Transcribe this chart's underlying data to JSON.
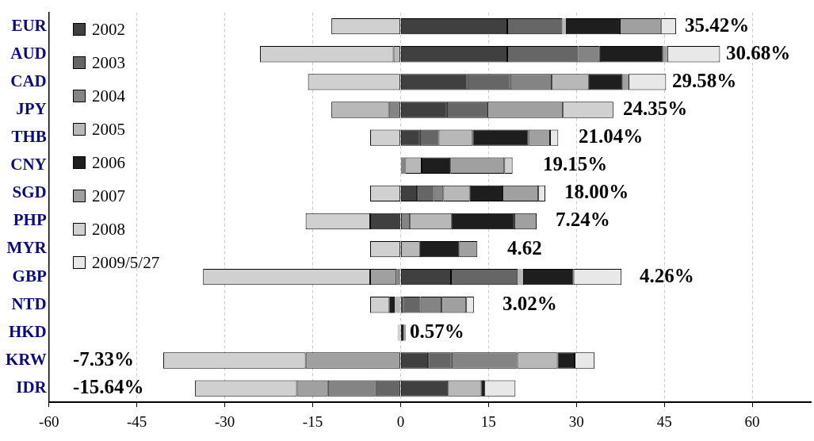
{
  "chart_data": {
    "type": "bar",
    "orientation": "horizontal",
    "stacked": true,
    "categories": [
      "EUR",
      "AUD",
      "CAD",
      "JPY",
      "THB",
      "CNY",
      "SGD",
      "PHP",
      "MYR",
      "GBP",
      "NTD",
      "HKD",
      "KRW",
      "IDR"
    ],
    "series": [
      {
        "name": "2002",
        "color": "#404040",
        "values": [
          18.2,
          18.2,
          11.4,
          7.9,
          3.3,
          null,
          2.8,
          -5.2,
          null,
          8.6,
          0.4,
          null,
          4.7,
          8.1
        ]
      },
      {
        "name": "2003",
        "color": "#666666",
        "values": [
          9.4,
          12.1,
          7.3,
          6.9,
          3.2,
          null,
          2.9,
          null,
          null,
          11.4,
          3.0,
          null,
          4.0,
          -4.3
        ]
      },
      {
        "name": "2004",
        "color": "#848484",
        "values": [
          null,
          3.7,
          7.1,
          -2.0,
          null,
          0.8,
          1.6,
          1.6,
          null,
          -0.7,
          3.6,
          null,
          11.2,
          -8.1
        ]
      },
      {
        "name": "2005",
        "color": "#b8b8b8",
        "values": [
          0.6,
          -1.2,
          6.3,
          -9.8,
          5.8,
          2.8,
          4.5,
          7.1,
          3.3,
          0.9,
          -1.0,
          null,
          6.9,
          5.7
        ]
      },
      {
        "name": "2006",
        "color": "#1e1e1e",
        "values": [
          9.2,
          10.8,
          5.8,
          null,
          9.5,
          4.9,
          5.6,
          10.7,
          6.7,
          8.6,
          -0.9,
          0.5,
          2.9,
          0.5
        ]
      },
      {
        "name": "2007",
        "color": "#a0a0a0",
        "values": [
          7.0,
          0.7,
          1.0,
          12.9,
          3.7,
          9.2,
          6.1,
          3.8,
          3.1,
          -4.5,
          4.2,
          0.4,
          -16.2,
          -5.3
        ]
      },
      {
        "name": "2008",
        "color": "#d0d0d0",
        "values": [
          -11.8,
          -22.8,
          -15.8,
          8.6,
          -5.2,
          1.4,
          -5.2,
          -11.0,
          -5.2,
          -28.5,
          -3.3,
          -0.5,
          -24.3,
          -17.4
        ]
      },
      {
        "name": "2009/5/27",
        "color": "#e8e8e8",
        "values": [
          2.6,
          9.0,
          6.4,
          null,
          1.4,
          null,
          1.2,
          null,
          null,
          8.2,
          1.3,
          null,
          3.4,
          5.3
        ]
      }
    ],
    "xlim": [
      -60,
      70
    ],
    "xticks": [
      -60,
      -45,
      -30,
      -15,
      0,
      15,
      30,
      45,
      60
    ],
    "grid": "x",
    "legend": "top left",
    "annotations": [
      "35.42%",
      "30.68%",
      "29.58%",
      "24.35%",
      "21.04%",
      "19.15%",
      "18.00%",
      "7.24%",
      "4.62",
      "4.26%",
      "3.02%",
      "0.57%",
      "-7.33%",
      "-15.64%"
    ]
  }
}
